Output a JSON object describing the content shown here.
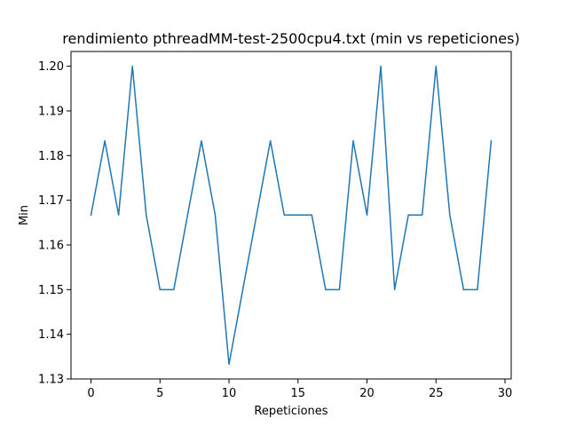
{
  "chart_data": {
    "type": "line",
    "title": "rendimiento pthreadMM-test-2500cpu4.txt (min vs repeticiones)",
    "xlabel": "Repeticiones",
    "ylabel": "Min",
    "xlim": [
      -1.45,
      30.45
    ],
    "ylim": [
      1.13,
      1.2033
    ],
    "xticks": [
      0,
      5,
      10,
      15,
      20,
      25,
      30
    ],
    "xtick_labels": [
      "0",
      "5",
      "10",
      "15",
      "20",
      "25",
      "30"
    ],
    "yticks": [
      1.13,
      1.14,
      1.15,
      1.16,
      1.17,
      1.18,
      1.19,
      1.2
    ],
    "ytick_labels": [
      "1.13",
      "1.14",
      "1.15",
      "1.16",
      "1.17",
      "1.18",
      "1.19",
      "1.20"
    ],
    "grid": false,
    "series": [
      {
        "color": "#1f77b4",
        "x": [
          0,
          1,
          2,
          3,
          4,
          5,
          6,
          7,
          8,
          9,
          10,
          11,
          12,
          13,
          14,
          15,
          16,
          17,
          18,
          19,
          20,
          21,
          22,
          23,
          24,
          25,
          26,
          27,
          28,
          29
        ],
        "y": [
          1.1667,
          1.1833,
          1.1667,
          1.2,
          1.1667,
          1.15,
          1.15,
          1.1667,
          1.1833,
          1.1667,
          1.1333,
          1.15,
          1.1667,
          1.1833,
          1.1667,
          1.1667,
          1.1667,
          1.15,
          1.15,
          1.1833,
          1.1667,
          1.2,
          1.15,
          1.1667,
          1.1667,
          1.2,
          1.1667,
          1.15,
          1.15,
          1.1833
        ]
      }
    ]
  }
}
